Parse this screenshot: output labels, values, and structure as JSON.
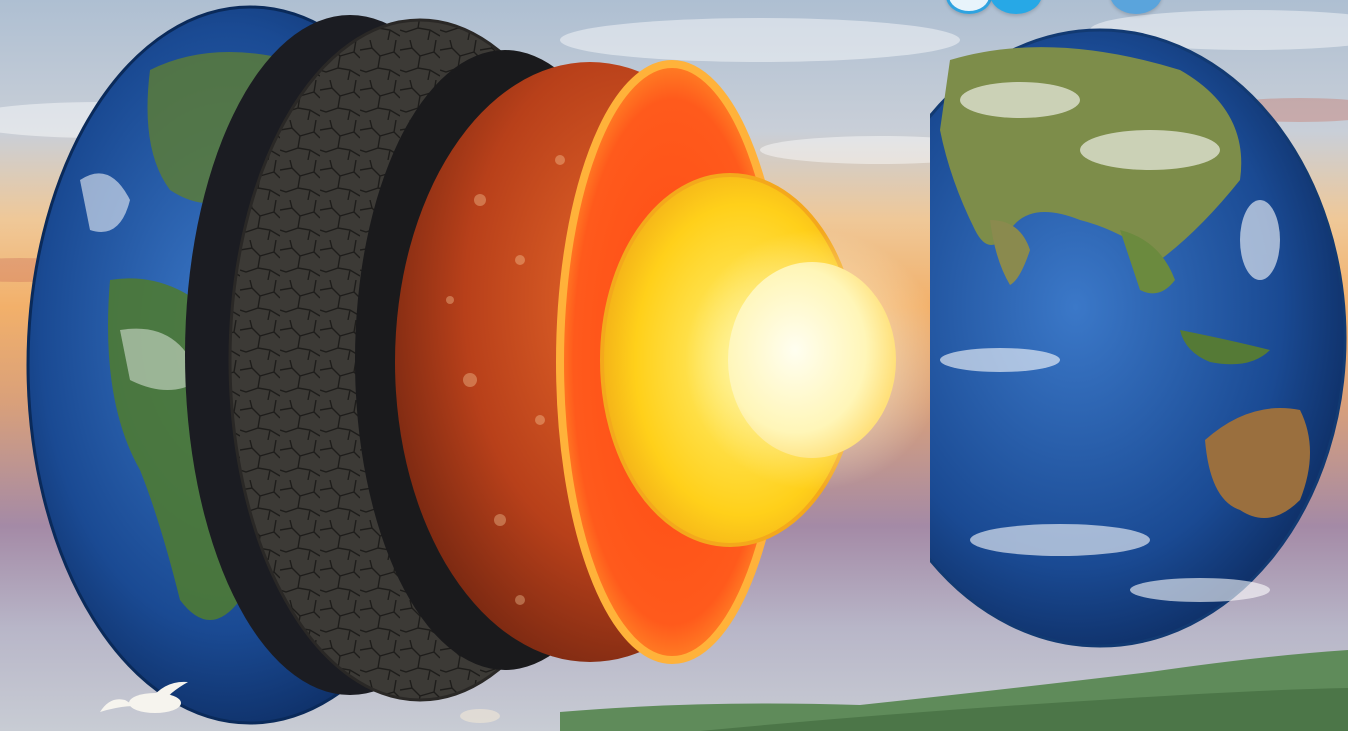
{
  "image": {
    "subject": "exploded-earth-layers",
    "colors": {
      "sky_top": "#b8c6d8",
      "sky_sunset": "#f0b070",
      "ocean": "#1d4f9a",
      "crust": "#3a3834",
      "mantle": "#c0441a",
      "outer_core": "#ffd21a",
      "inner_core": "#fff8c8",
      "hills": "#5e8a5a"
    }
  },
  "top_controls": {
    "icons": [
      "circle-icon",
      "circle-icon",
      "circle-icon"
    ]
  }
}
